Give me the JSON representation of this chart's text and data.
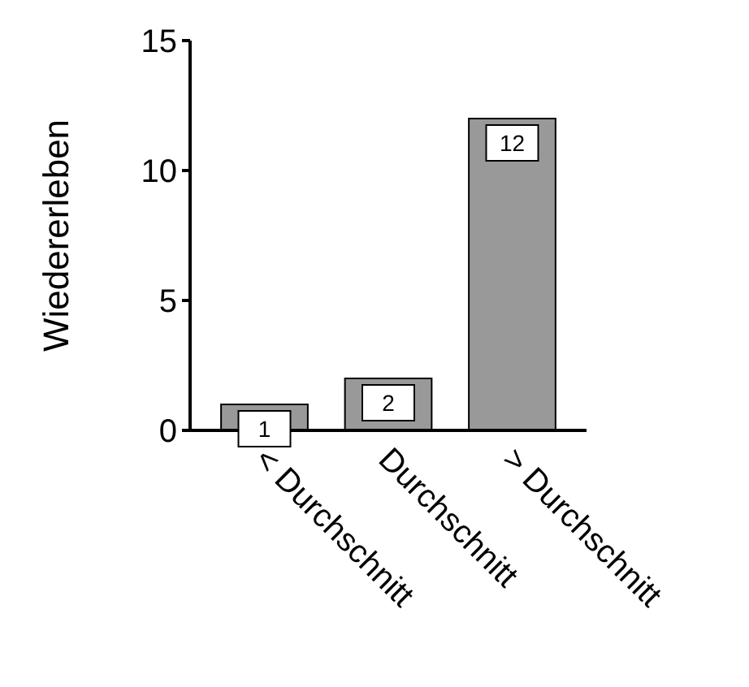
{
  "chart_data": {
    "type": "bar",
    "ylabel": "Wiedererleben",
    "categories": [
      "< Durchschnitt",
      "Durchschnitt",
      "> Durchschnitt"
    ],
    "values": [
      1,
      2,
      12
    ],
    "color": "#999999",
    "ylim": [
      0,
      15
    ],
    "yticks": [
      0,
      5,
      10,
      15
    ],
    "data_labels": true,
    "grid": false
  }
}
